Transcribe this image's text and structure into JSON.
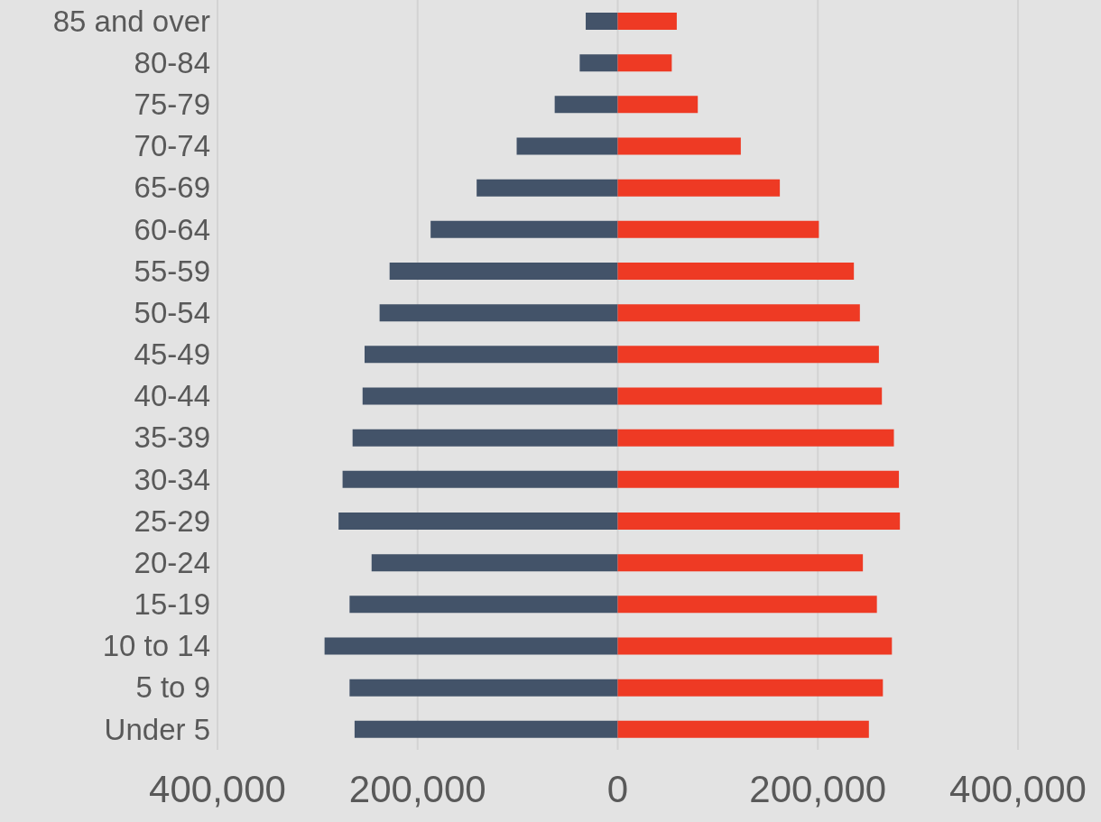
{
  "chart_data": {
    "type": "bar",
    "orientation": "horizontal",
    "stacked": true,
    "categories": [
      "85 and over",
      "80-84",
      "75-79",
      "70-74",
      "65-69",
      "60-64",
      "55-59",
      "50-54",
      "45-49",
      "40-44",
      "35-39",
      "30-34",
      "25-29",
      "20-24",
      "15-19",
      "10 to 14",
      "5 to 9",
      "Under 5"
    ],
    "series": [
      {
        "color": "#435369",
        "values": [
          -32000,
          -38000,
          -63000,
          -101000,
          -141000,
          -187000,
          -228000,
          -238000,
          -253000,
          -255000,
          -265000,
          -275000,
          -279000,
          -246000,
          -268000,
          -293000,
          -268000,
          -263000
        ]
      },
      {
        "color": "#ee3a24",
        "values": [
          59000,
          54000,
          80000,
          123000,
          162000,
          201000,
          236000,
          242000,
          261000,
          264000,
          276000,
          281000,
          282000,
          245000,
          259000,
          274000,
          265000,
          251000
        ]
      }
    ],
    "xlim": [
      -400000,
      400000
    ],
    "xticks": [
      {
        "value": -400000,
        "label": "400,000"
      },
      {
        "value": -200000,
        "label": "200,000"
      },
      0,
      {
        "value": 200000,
        "label": "200,000"
      },
      {
        "value": 400000,
        "label": "400,000"
      }
    ],
    "grid": "x",
    "legend": false
  }
}
